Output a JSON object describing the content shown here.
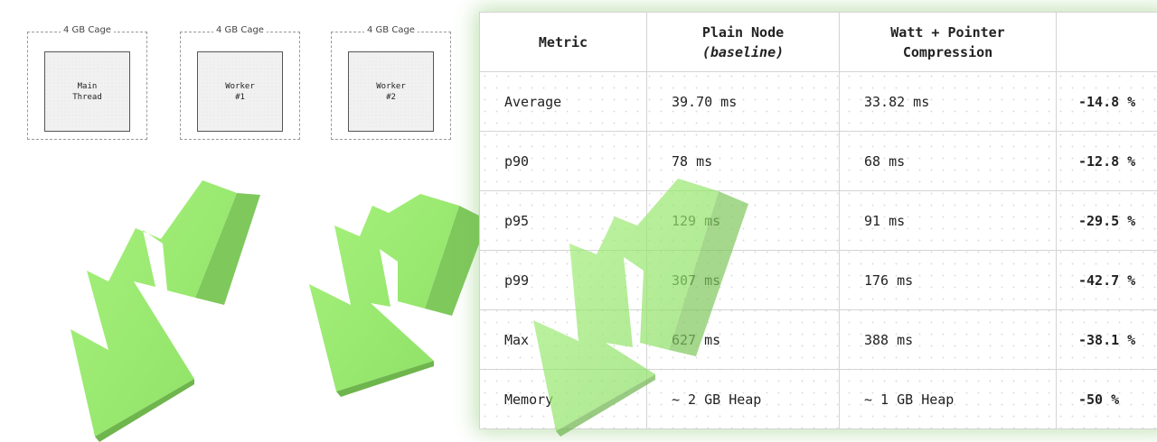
{
  "diagram": {
    "cages": [
      {
        "label": "4 GB Cage",
        "thread": [
          "Main",
          "Thread"
        ]
      },
      {
        "label": "4 GB Cage",
        "thread": [
          "Worker",
          "#1"
        ]
      },
      {
        "label": "4 GB Cage",
        "thread": [
          "Worker",
          "#2"
        ]
      }
    ]
  },
  "table": {
    "headers": {
      "metric": "Metric",
      "plain_line1": "Plain Node",
      "plain_line2": "(baseline)",
      "watt_line1": "Watt + Pointer",
      "watt_line2": "Compression",
      "change": ""
    },
    "rows": [
      {
        "metric": "Average",
        "plain": "39.70 ms",
        "watt": "33.82 ms",
        "change": "-14.8 %"
      },
      {
        "metric": "p90",
        "plain": "78 ms",
        "watt": "68 ms",
        "change": "-12.8 %"
      },
      {
        "metric": "p95",
        "plain": "129 ms",
        "watt": "91 ms",
        "change": "-29.5 %"
      },
      {
        "metric": "p99",
        "plain": "307 ms",
        "watt": "176 ms",
        "change": "-42.7 %"
      },
      {
        "metric": "Max",
        "plain": "627 ms",
        "watt": "388 ms",
        "change": "-38.1 %"
      },
      {
        "metric": "Memory",
        "plain": "~ 2 GB Heap",
        "watt": "~ 1 GB Heap",
        "change": "-50 %"
      }
    ]
  },
  "colors": {
    "arrow_front": "#98ee6e",
    "arrow_side": "#7fc85c",
    "arrow_top": "#aef78a",
    "card_glow": "#78be5a"
  },
  "icons": [
    "down-arrow-icon",
    "down-arrow-icon",
    "down-arrow-icon"
  ]
}
